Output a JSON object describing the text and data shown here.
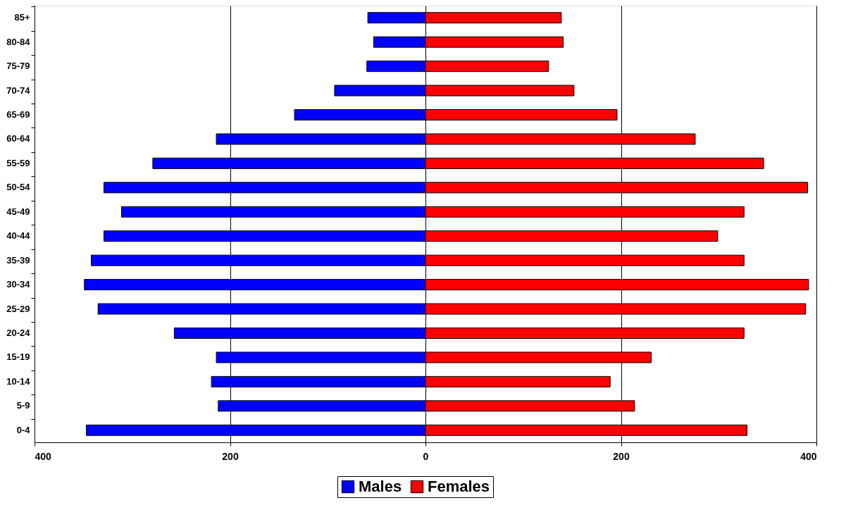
{
  "chart_data": {
    "type": "bar",
    "orientation": "horizontal",
    "categories": [
      "85+",
      "80-84",
      "75-79",
      "70-74",
      "65-69",
      "60-64",
      "55-59",
      "50-54",
      "45-49",
      "40-44",
      "35-39",
      "30-34",
      "25-29",
      "20-24",
      "15-19",
      "10-14",
      "5-9",
      "0-4"
    ],
    "series": [
      {
        "name": "Males",
        "color": "#0000ff",
        "values": [
          -59,
          -53,
          -60,
          -93,
          -134,
          -214,
          -279,
          -329,
          -311,
          -329,
          -342,
          -349,
          -335,
          -257,
          -214,
          -219,
          -212,
          -347
        ]
      },
      {
        "name": "Females",
        "color": "#ff0000",
        "values": [
          139,
          141,
          126,
          152,
          196,
          276,
          346,
          391,
          326,
          299,
          326,
          392,
          389,
          326,
          231,
          189,
          214,
          329
        ]
      }
    ],
    "xlim": [
      -400,
      400
    ],
    "xticks": [
      {
        "value": -400,
        "label": "400"
      },
      {
        "value": -200,
        "label": "200"
      },
      0,
      200,
      400
    ],
    "grid": "x",
    "legend": "bottom",
    "stacked": true
  }
}
